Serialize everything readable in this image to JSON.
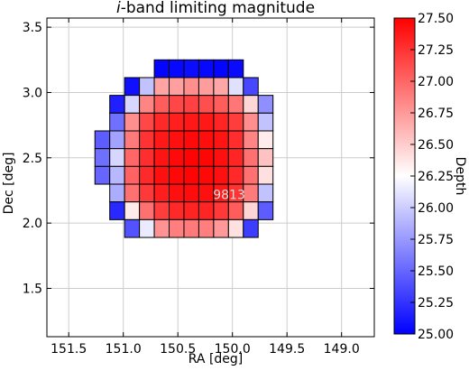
{
  "chart_data": {
    "type": "heatmap",
    "title_prefix": "i",
    "title_rest": "-band limiting magnitude",
    "xlabel": "RA [deg]",
    "ylabel": "Dec [deg]",
    "xlim": [
      151.7,
      148.7
    ],
    "ylim": [
      1.13,
      3.57
    ],
    "x_ticks": [
      151.5,
      151.0,
      150.5,
      150.0,
      149.5,
      149.0
    ],
    "x_tick_labels": [
      "151.5",
      "151.0",
      "150.5",
      "150.0",
      "149.5",
      "149.0"
    ],
    "y_ticks": [
      1.5,
      2.0,
      2.5,
      3.0,
      3.5
    ],
    "y_tick_labels": [
      "1.5",
      "2.0",
      "2.5",
      "3.0",
      "3.5"
    ],
    "grid": true,
    "annotation": "9813",
    "annotation_position_data": [
      150.03,
      2.22
    ],
    "colorbar": {
      "label": "Depth",
      "min": 25.0,
      "max": 27.5,
      "ticks": [
        "25.00",
        "25.25",
        "25.50",
        "25.75",
        "26.00",
        "26.25",
        "26.50",
        "26.75",
        "27.00",
        "27.25",
        "27.50"
      ],
      "colors": [
        "#0000ff",
        "#ffffff",
        "#ff0000"
      ]
    },
    "cells": {
      "cell_size_deg": 0.136,
      "ra_first_col_left": 151.26,
      "dec_top_row_top": 3.25,
      "rows": [
        [
          null,
          null,
          null,
          null,
          25.02,
          25.04,
          25.06,
          25.04,
          25.02,
          25.05,
          null,
          null,
          null,
          null
        ],
        [
          null,
          null,
          25.08,
          25.95,
          26.7,
          26.72,
          26.8,
          26.73,
          26.68,
          26.1,
          25.35,
          null,
          null,
          null
        ],
        [
          null,
          25.15,
          26.05,
          26.85,
          27.05,
          27.15,
          27.18,
          27.12,
          27.05,
          26.92,
          26.45,
          25.7,
          null,
          null
        ],
        [
          null,
          25.55,
          26.8,
          27.15,
          27.3,
          27.35,
          27.38,
          27.38,
          27.32,
          27.2,
          26.8,
          25.95,
          null,
          null
        ],
        [
          25.45,
          25.8,
          26.9,
          27.25,
          27.38,
          27.42,
          27.45,
          27.43,
          27.4,
          27.28,
          26.85,
          26.35,
          null,
          null
        ],
        [
          25.55,
          26.05,
          27.0,
          27.28,
          27.4,
          27.45,
          27.48,
          27.47,
          27.42,
          27.32,
          26.95,
          26.55,
          null,
          null
        ],
        [
          25.5,
          25.9,
          27.02,
          27.3,
          27.42,
          27.46,
          27.48,
          27.46,
          27.42,
          27.3,
          26.95,
          26.4,
          null,
          null
        ],
        [
          null,
          25.85,
          26.95,
          27.22,
          27.36,
          27.42,
          27.44,
          27.42,
          27.38,
          27.25,
          26.9,
          25.95,
          null,
          null
        ],
        [
          null,
          25.2,
          26.35,
          26.95,
          27.2,
          27.3,
          27.33,
          27.32,
          27.22,
          27.05,
          26.45,
          25.45,
          null,
          null
        ],
        [
          null,
          null,
          25.4,
          26.15,
          26.78,
          26.88,
          26.9,
          26.88,
          26.75,
          26.4,
          25.3,
          null,
          null,
          null
        ]
      ]
    }
  }
}
